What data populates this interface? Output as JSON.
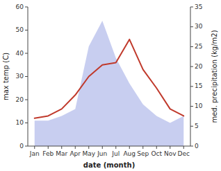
{
  "chart_data": {
    "type": "line",
    "categories": [
      "Jan",
      "Feb",
      "Mar",
      "Apr",
      "May",
      "Jun",
      "Jul",
      "Aug",
      "Sep",
      "Oct",
      "Nov",
      "Dec"
    ],
    "series": [
      {
        "type": "area",
        "color": "#aab4e8",
        "values": [
          11,
          11,
          13,
          16,
          43,
          54,
          38,
          27,
          18,
          13,
          10,
          13
        ]
      },
      {
        "type": "line",
        "color": "#c0392b",
        "values": [
          12,
          13,
          16,
          22,
          30,
          35,
          36,
          46,
          33,
          25,
          16,
          13
        ]
      }
    ],
    "xlabel": "date (month)",
    "ylabel": "max temp (C)",
    "y2label": "med. precipitation (kg/m2)",
    "ylim": [
      0,
      60
    ],
    "yticks": [
      0,
      10,
      20,
      30,
      40,
      50,
      60
    ],
    "y2lim": [
      0,
      35
    ],
    "y2ticks": [
      0,
      5,
      10,
      15,
      20,
      25,
      30,
      35
    ]
  }
}
